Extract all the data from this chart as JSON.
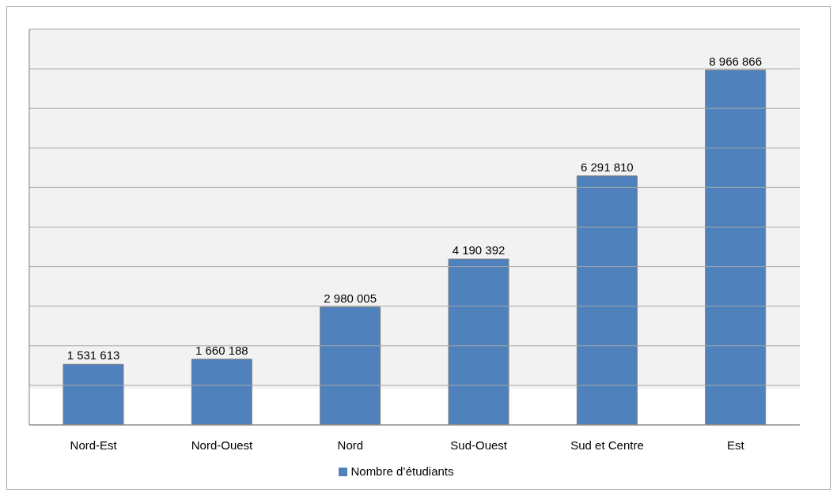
{
  "chart_data": {
    "type": "bar",
    "categories": [
      "Nord-Est",
      "Nord-Ouest",
      "Nord",
      "Sud-Ouest",
      "Sud et Centre",
      "Est"
    ],
    "series": [
      {
        "name": "Nombre d’étudiants",
        "color": "#4f81bd",
        "values": [
          1531613,
          1660188,
          2980005,
          4190392,
          6291810,
          8966866
        ],
        "value_labels": [
          "1 531 613",
          "1 660 188",
          "2 980 005",
          "4 190 392",
          "6 291 810",
          "8 966 866"
        ]
      }
    ],
    "ylim": [
      0,
      10000000
    ],
    "yticks": [
      {
        "value": 0,
        "label": null
      },
      {
        "value": 1000000,
        "label": null
      },
      {
        "value": 2000000,
        "label": null
      },
      {
        "value": 3000000,
        "label": null
      },
      {
        "value": 4000000,
        "label": null
      },
      {
        "value": 5000000,
        "label": null
      },
      {
        "value": 6000000,
        "label": null
      },
      {
        "value": 7000000,
        "label": null
      },
      {
        "value": 8000000,
        "label": null
      },
      {
        "value": 9000000,
        "label": null
      },
      {
        "value": 10000000,
        "label": null
      }
    ],
    "tick_labels": "x",
    "grid": "y",
    "legend": "bottom"
  }
}
